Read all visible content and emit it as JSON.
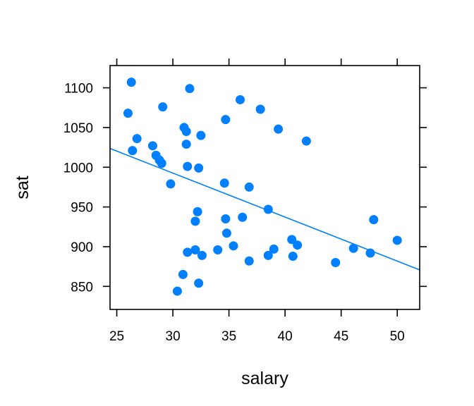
{
  "chart_data": {
    "type": "scatter",
    "xlabel": "salary",
    "ylabel": "sat",
    "xlim": [
      24.4,
      52.0
    ],
    "ylim": [
      821,
      1128
    ],
    "xticks": [
      25,
      30,
      35,
      40,
      45,
      50
    ],
    "yticks": [
      850,
      900,
      950,
      1000,
      1050,
      1100
    ],
    "colors": {
      "points": "#0080ff",
      "line": "#0080ff",
      "axes": "#000000"
    },
    "grid": false,
    "regression_line": {
      "intercept": 1158.86,
      "slope": -5.54
    },
    "points": [
      {
        "x": 26.3,
        "y": 1107
      },
      {
        "x": 26.0,
        "y": 1068
      },
      {
        "x": 26.8,
        "y": 1036
      },
      {
        "x": 26.4,
        "y": 1021
      },
      {
        "x": 29.1,
        "y": 1076
      },
      {
        "x": 28.2,
        "y": 1027
      },
      {
        "x": 28.5,
        "y": 1015
      },
      {
        "x": 28.8,
        "y": 1009
      },
      {
        "x": 29.0,
        "y": 1005
      },
      {
        "x": 29.8,
        "y": 979
      },
      {
        "x": 31.5,
        "y": 1099
      },
      {
        "x": 31.0,
        "y": 1050
      },
      {
        "x": 31.2,
        "y": 1045
      },
      {
        "x": 32.5,
        "y": 1040
      },
      {
        "x": 31.2,
        "y": 1029
      },
      {
        "x": 31.3,
        "y": 1001
      },
      {
        "x": 32.3,
        "y": 999
      },
      {
        "x": 32.2,
        "y": 944
      },
      {
        "x": 32.0,
        "y": 932
      },
      {
        "x": 32.0,
        "y": 896
      },
      {
        "x": 31.3,
        "y": 893
      },
      {
        "x": 32.6,
        "y": 889
      },
      {
        "x": 30.9,
        "y": 865
      },
      {
        "x": 32.3,
        "y": 854
      },
      {
        "x": 30.4,
        "y": 844
      },
      {
        "x": 34.7,
        "y": 1060
      },
      {
        "x": 36.0,
        "y": 1085
      },
      {
        "x": 37.8,
        "y": 1073
      },
      {
        "x": 39.4,
        "y": 1048
      },
      {
        "x": 41.9,
        "y": 1033
      },
      {
        "x": 34.6,
        "y": 980
      },
      {
        "x": 36.8,
        "y": 975
      },
      {
        "x": 38.5,
        "y": 947
      },
      {
        "x": 36.2,
        "y": 937
      },
      {
        "x": 34.7,
        "y": 935
      },
      {
        "x": 34.8,
        "y": 917
      },
      {
        "x": 35.4,
        "y": 901
      },
      {
        "x": 34.0,
        "y": 896
      },
      {
        "x": 36.8,
        "y": 882
      },
      {
        "x": 38.5,
        "y": 889
      },
      {
        "x": 39.0,
        "y": 897
      },
      {
        "x": 40.6,
        "y": 909
      },
      {
        "x": 41.1,
        "y": 902
      },
      {
        "x": 40.7,
        "y": 888
      },
      {
        "x": 44.5,
        "y": 880
      },
      {
        "x": 46.1,
        "y": 898
      },
      {
        "x": 47.6,
        "y": 892
      },
      {
        "x": 47.9,
        "y": 934
      },
      {
        "x": 50.0,
        "y": 908
      }
    ]
  }
}
